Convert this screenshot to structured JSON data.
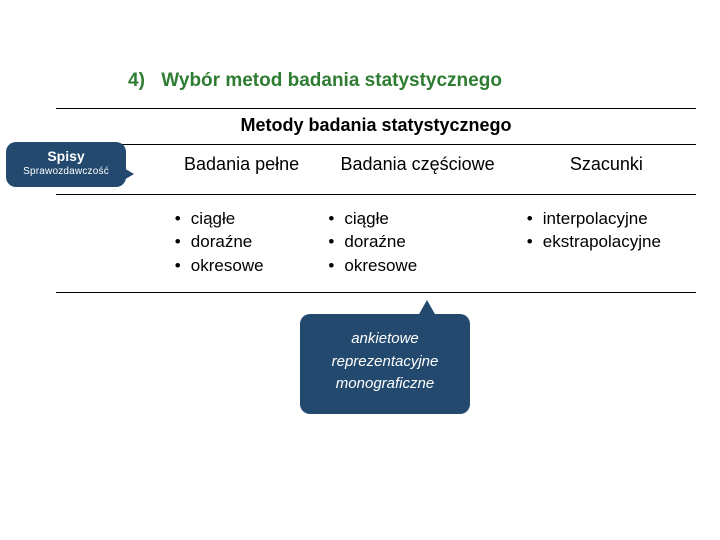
{
  "heading": {
    "number": "4)",
    "text": "Wybór metod badania statystycznego",
    "color": "#1f7a1f"
  },
  "table": {
    "title": "Metody badania statystycznego",
    "columns": [
      {
        "head": "",
        "items": []
      },
      {
        "head": "Badania pełne",
        "items": [
          "ciągłe",
          "doraźne",
          "okresowe"
        ]
      },
      {
        "head": "Badania częściowe",
        "items": [
          "ciągłe",
          "doraźne",
          "okresowe"
        ]
      },
      {
        "head": "Szacunki",
        "items": [
          "interpolacyjne",
          "ekstrapolacyjne"
        ]
      }
    ]
  },
  "callout_left": {
    "line1": "Spisy",
    "line2": "Sprawozdawczość",
    "bg": "#23496f",
    "color": "#ffffff"
  },
  "callout_bottom": {
    "line1": "ankietowe",
    "line2": "reprezentacyjne",
    "line3": "monograficzne",
    "bg": "#23496f",
    "color": "#ffffff"
  }
}
